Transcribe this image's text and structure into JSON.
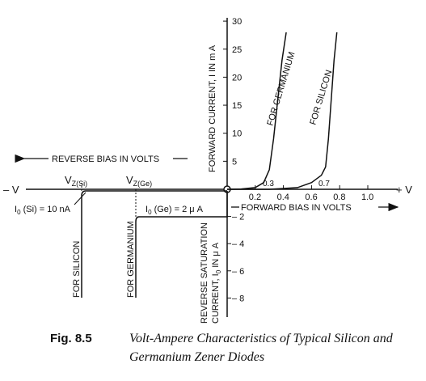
{
  "chart_data": {
    "type": "line",
    "title": "",
    "x_axis": {
      "left_symbol": "– V",
      "right_symbol": "+ V",
      "reverse_label": "REVERSE BIAS IN VOLTS",
      "forward_label": "FORWARD BIAS IN VOLTS",
      "ticks": [
        {
          "value": 0.2,
          "label": "0.2"
        },
        {
          "value": 0.4,
          "label": "0.4"
        },
        {
          "value": 0.6,
          "label": "0.6"
        },
        {
          "value": 0.8,
          "label": "0.8"
        },
        {
          "value": 1.0,
          "label": "1.0"
        }
      ],
      "xlim_forward": [
        0,
        1.1
      ]
    },
    "y_axis": {
      "forward_label": "FORWARD CURRENT, I IN m A",
      "reverse_label": [
        "REVERSE SATURATION",
        "CURRENT, I",
        "0",
        " IN μ A"
      ],
      "forward_ticks": [
        {
          "value": 5,
          "label": "5"
        },
        {
          "value": 10,
          "label": "10"
        },
        {
          "value": 15,
          "label": "15"
        },
        {
          "value": 20,
          "label": "20"
        },
        {
          "value": 25,
          "label": "25"
        },
        {
          "value": 30,
          "label": "30"
        }
      ],
      "reverse_ticks": [
        {
          "value": -2,
          "label": "– 2"
        },
        {
          "value": -4,
          "label": "– 4"
        },
        {
          "value": -6,
          "label": "– 6"
        },
        {
          "value": -8,
          "label": "– 8"
        }
      ],
      "ylim_forward_mA": [
        0,
        30
      ],
      "ylim_reverse_uA": [
        -9,
        0
      ]
    },
    "series": [
      {
        "name": "FOR GERMANIUM",
        "knee_label": "0.3",
        "forward_points": [
          [
            0,
            0
          ],
          [
            0.1,
            0.05
          ],
          [
            0.2,
            0.3
          ],
          [
            0.26,
            1.2
          ],
          [
            0.3,
            3.5
          ],
          [
            0.33,
            9
          ],
          [
            0.36,
            16
          ],
          [
            0.39,
            23
          ],
          [
            0.42,
            28
          ]
        ]
      },
      {
        "name": "FOR SILICON",
        "knee_label": "0.7",
        "forward_points": [
          [
            0,
            0
          ],
          [
            0.3,
            0
          ],
          [
            0.5,
            0.3
          ],
          [
            0.6,
            1.2
          ],
          [
            0.67,
            2.5
          ],
          [
            0.7,
            4
          ],
          [
            0.72,
            9
          ],
          [
            0.74,
            16
          ],
          [
            0.76,
            23
          ],
          [
            0.78,
            28
          ]
        ]
      }
    ],
    "reverse_series": [
      {
        "name": "FOR SILICON",
        "zener_label_main": "V",
        "zener_label_sub": "Z(Si)",
        "saturation_label": "I",
        "saturation_sub": "0",
        "saturation_text": " (Si) = 10 nA"
      },
      {
        "name": "FOR GERMANIUM",
        "zener_label_main": "V",
        "zener_label_sub": "Z(Ge)",
        "saturation_label": "I",
        "saturation_sub": "0",
        "saturation_text": " (Ge) = 2 μ A",
        "saturation_uA": -2
      }
    ]
  },
  "caption": {
    "number": "Fig. 8.5",
    "line1": "Volt-Ampere Characteristics of Typical Silicon and",
    "line2": "Germanium Zener Diodes"
  }
}
